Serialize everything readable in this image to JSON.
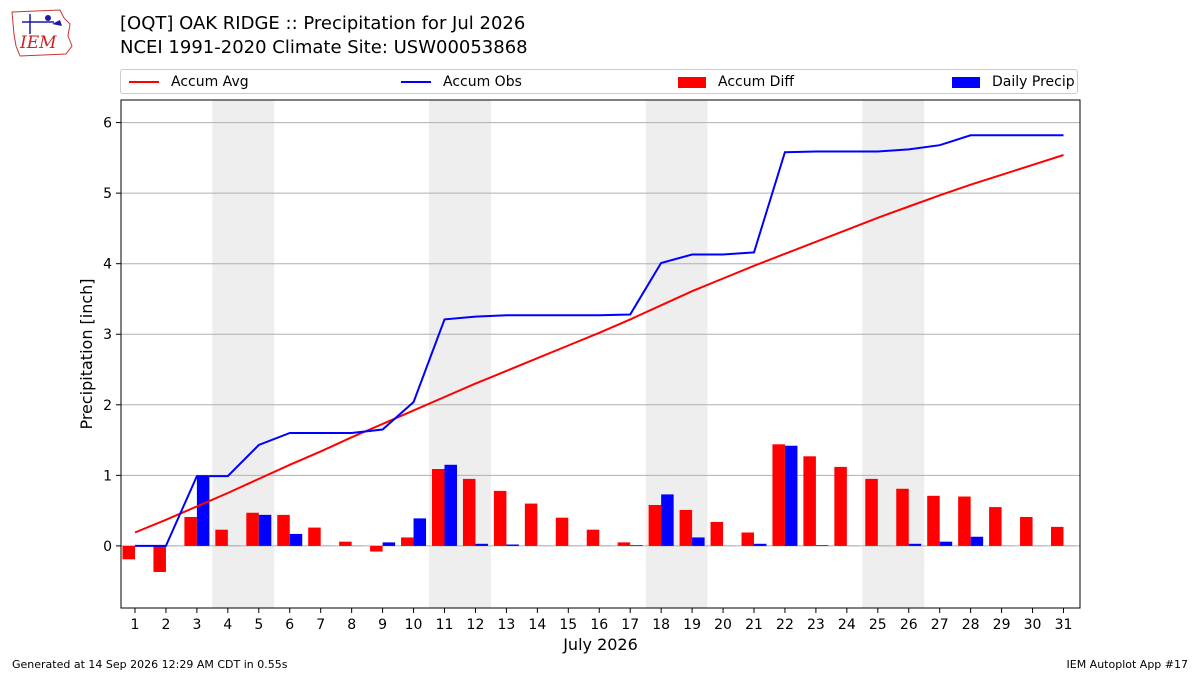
{
  "header": {
    "title_line1": "[OQT] OAK RIDGE :: Precipitation for Jul 2026",
    "title_line2": "NCEI 1991-2020 Climate Site: USW00053868",
    "logo_text": "IEM"
  },
  "footer": {
    "left": "Generated at 14 Sep 2026 12:29 AM CDT in 0.55s",
    "right": "IEM Autoplot App #17"
  },
  "colors": {
    "avg": "#ff0000",
    "obs": "#0000ff",
    "diff": "#ff0000",
    "daily": "#0000ff",
    "weekend": "#eeeeee",
    "grid": "#b0b0b0"
  },
  "legend": [
    {
      "label": "Accum Avg",
      "kind": "line",
      "color": "#ff0000"
    },
    {
      "label": "Accum Obs",
      "kind": "line",
      "color": "#0000ff"
    },
    {
      "label": "Accum Diff",
      "kind": "box",
      "color": "#ff0000"
    },
    {
      "label": "Daily Precip",
      "kind": "box",
      "color": "#0000ff"
    }
  ],
  "chart_data": {
    "type": "bar",
    "xlabel": "July 2026",
    "ylabel": "Precipitation [inch]",
    "ylim": [
      -0.88,
      6.32
    ],
    "yticks": [
      0,
      1,
      2,
      3,
      4,
      5,
      6
    ],
    "grid": true,
    "legend_position": "top",
    "categories": [
      "1",
      "2",
      "3",
      "4",
      "5",
      "6",
      "7",
      "8",
      "9",
      "10",
      "11",
      "12",
      "13",
      "14",
      "15",
      "16",
      "17",
      "18",
      "19",
      "20",
      "21",
      "22",
      "23",
      "24",
      "25",
      "26",
      "27",
      "28",
      "29",
      "30",
      "31"
    ],
    "weekend_spans": [
      [
        4,
        5
      ],
      [
        11,
        12
      ],
      [
        18,
        19
      ],
      [
        25,
        26
      ]
    ],
    "series": [
      {
        "name": "Accum Avg",
        "type": "line",
        "values": [
          0.19,
          0.37,
          0.56,
          0.75,
          0.95,
          1.15,
          1.34,
          1.54,
          1.73,
          1.92,
          2.11,
          2.3,
          2.48,
          2.66,
          2.84,
          3.02,
          3.21,
          3.41,
          3.61,
          3.79,
          3.97,
          4.14,
          4.31,
          4.48,
          4.65,
          4.81,
          4.97,
          5.12,
          5.26,
          5.4,
          5.54
        ]
      },
      {
        "name": "Accum Obs",
        "type": "line",
        "values": [
          0.0,
          0.0,
          0.99,
          0.99,
          1.43,
          1.6,
          1.6,
          1.6,
          1.65,
          2.04,
          3.21,
          3.25,
          3.27,
          3.27,
          3.27,
          3.27,
          3.28,
          4.01,
          4.13,
          4.13,
          4.16,
          5.58,
          5.59,
          5.59,
          5.59,
          5.62,
          5.68,
          5.82,
          5.82,
          5.82,
          5.82
        ]
      },
      {
        "name": "Accum Diff",
        "type": "bar",
        "values": [
          -0.19,
          -0.37,
          0.41,
          0.23,
          0.47,
          0.44,
          0.26,
          0.06,
          -0.08,
          0.12,
          1.09,
          0.95,
          0.78,
          0.6,
          0.4,
          0.23,
          0.05,
          0.58,
          0.51,
          0.34,
          0.19,
          1.44,
          1.27,
          1.12,
          0.95,
          0.81,
          0.71,
          0.7,
          0.55,
          0.41,
          0.27
        ]
      },
      {
        "name": "Daily Precip",
        "type": "bar",
        "values": [
          0.0,
          0.0,
          0.99,
          0.0,
          0.44,
          0.17,
          0.0,
          0.0,
          0.05,
          0.39,
          1.15,
          0.03,
          0.02,
          0.0,
          0.0,
          0.0,
          0.01,
          0.73,
          0.12,
          0.0,
          0.03,
          1.42,
          0.01,
          0.0,
          0.0,
          0.03,
          0.06,
          0.13,
          0.0,
          0.0,
          0.0
        ]
      }
    ]
  }
}
